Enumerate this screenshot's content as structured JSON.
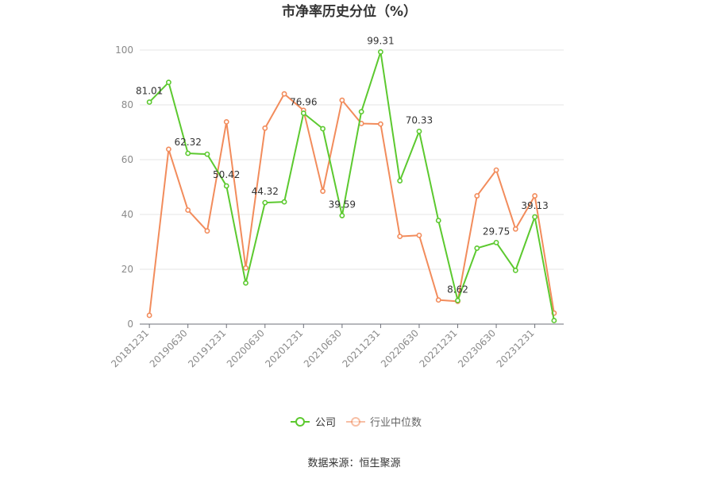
{
  "chart_data": {
    "type": "line",
    "title": "市净率历史分位（%）",
    "x": [
      "20181231",
      "20190331",
      "20190630",
      "20190930",
      "20191231",
      "20200331",
      "20200630",
      "20200930",
      "20201231",
      "20210331",
      "20210630",
      "20210930",
      "20211231",
      "20220331",
      "20220630",
      "20220930",
      "20221231",
      "20230331",
      "20230630",
      "20230930",
      "20231231",
      "20240331"
    ],
    "x_tick_labels": [
      "20181231",
      "20190630",
      "20191231",
      "20200630",
      "20201231",
      "20210630",
      "20211231",
      "20220630",
      "20221231",
      "20230630",
      "20231231"
    ],
    "ylim": [
      0,
      100
    ],
    "yticks": [
      0,
      20,
      40,
      60,
      80,
      100
    ],
    "grid": true,
    "legend_position": "bottom",
    "series": [
      {
        "name": "公司",
        "color": "#5cc92f",
        "values": [
          81.01,
          88.2,
          62.32,
          62.0,
          50.42,
          15.0,
          44.32,
          44.6,
          76.96,
          71.3,
          39.59,
          77.5,
          99.31,
          52.3,
          70.33,
          37.8,
          8.62,
          27.7,
          29.75,
          19.6,
          39.13,
          1.3
        ],
        "labels": [
          "81.01",
          "",
          "62.32",
          "",
          "50.42",
          "",
          "44.32",
          "",
          "76.96",
          "",
          "39.59",
          "",
          "99.31",
          "",
          "70.33",
          "",
          "8.62",
          "",
          "29.75",
          "",
          "39.13",
          ""
        ]
      },
      {
        "name": "行业中位数",
        "color": "#f28c5c",
        "values": [
          3.2,
          63.8,
          41.6,
          34.0,
          73.8,
          20.5,
          71.5,
          84.0,
          78.0,
          48.5,
          81.7,
          73.2,
          73.0,
          32.0,
          32.4,
          8.8,
          8.3,
          46.8,
          56.2,
          34.7,
          46.8,
          4.0
        ]
      }
    ]
  },
  "footer": {
    "source": "数据来源：恒生聚源"
  }
}
